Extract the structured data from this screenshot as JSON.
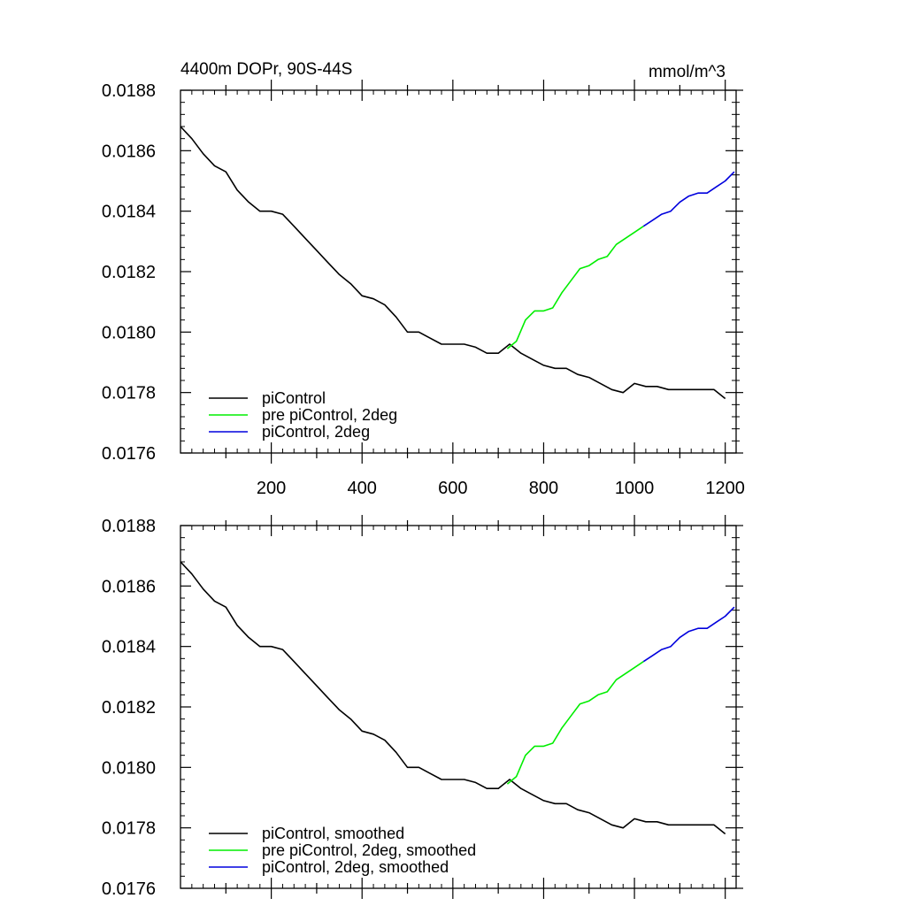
{
  "chart_data": [
    {
      "type": "line",
      "title": "4400m DOPr, 90S-44S",
      "units": "mmol/m^3",
      "xlim": [
        0,
        1224
      ],
      "ylim": [
        0.0176,
        0.0188
      ],
      "x_ticks": [
        200,
        400,
        600,
        800,
        1000,
        1200
      ],
      "x_tick_labels": [
        "200",
        "400",
        "600",
        "800",
        "1000",
        "1200"
      ],
      "y_ticks": [
        0.0176,
        0.0178,
        0.018,
        0.0182,
        0.0184,
        0.0186,
        0.0188
      ],
      "y_tick_labels": [
        "0.0176",
        "0.0178",
        "0.0180",
        "0.0182",
        "0.0184",
        "0.0186",
        "0.0188"
      ],
      "legend_position": "bottom-left",
      "series": [
        {
          "name": "piControl",
          "color": "#000000",
          "x": [
            0,
            25,
            50,
            75,
            100,
            125,
            150,
            175,
            200,
            225,
            250,
            275,
            300,
            325,
            350,
            375,
            400,
            425,
            450,
            475,
            500,
            525,
            550,
            575,
            600,
            625,
            650,
            675,
            700,
            725,
            750,
            775,
            800,
            825,
            850,
            875,
            900,
            925,
            950,
            975,
            1000,
            1025,
            1050,
            1075,
            1100,
            1125,
            1150,
            1175,
            1200
          ],
          "y": [
            0.01868,
            0.01864,
            0.01859,
            0.01855,
            0.01853,
            0.01847,
            0.01843,
            0.0184,
            0.0184,
            0.01839,
            0.01835,
            0.01831,
            0.01827,
            0.01823,
            0.01819,
            0.01816,
            0.01812,
            0.01811,
            0.01809,
            0.01805,
            0.018,
            0.018,
            0.01798,
            0.01796,
            0.01796,
            0.01796,
            0.01795,
            0.01793,
            0.01793,
            0.01796,
            0.01793,
            0.01791,
            0.01789,
            0.01788,
            0.01788,
            0.01786,
            0.01785,
            0.01783,
            0.01781,
            0.0178,
            0.01783,
            0.01782,
            0.01782,
            0.01781,
            0.01781,
            0.01781,
            0.01781,
            0.01781,
            0.01778
          ]
        },
        {
          "name": "pre piControl, 2deg",
          "color": "#00ee00",
          "x": [
            720,
            740,
            760,
            780,
            800,
            820,
            840,
            860,
            880,
            900,
            920,
            940,
            960,
            980,
            1000,
            1020
          ],
          "y": [
            0.017945,
            0.01797,
            0.01804,
            0.01807,
            0.01807,
            0.01808,
            0.01813,
            0.01817,
            0.01821,
            0.01822,
            0.01824,
            0.01825,
            0.01829,
            0.01831,
            0.01833,
            0.01835
          ]
        },
        {
          "name": "piControl, 2deg",
          "color": "#0000dd",
          "x": [
            1020,
            1040,
            1060,
            1080,
            1100,
            1120,
            1140,
            1160,
            1180,
            1200,
            1220
          ],
          "y": [
            0.01835,
            0.01837,
            0.01839,
            0.0184,
            0.01843,
            0.01845,
            0.01846,
            0.01846,
            0.01848,
            0.0185,
            0.01853
          ]
        }
      ]
    },
    {
      "type": "line",
      "xlim": [
        0,
        1224
      ],
      "ylim": [
        0.0176,
        0.0188
      ],
      "y_ticks": [
        0.0176,
        0.0178,
        0.018,
        0.0182,
        0.0184,
        0.0186,
        0.0188
      ],
      "y_tick_labels": [
        "0.0176",
        "0.0178",
        "0.0180",
        "0.0182",
        "0.0184",
        "0.0186",
        "0.0188"
      ],
      "legend_position": "bottom-left",
      "series": [
        {
          "name": "piControl, smoothed",
          "color": "#000000",
          "x": [
            0,
            25,
            50,
            75,
            100,
            125,
            150,
            175,
            200,
            225,
            250,
            275,
            300,
            325,
            350,
            375,
            400,
            425,
            450,
            475,
            500,
            525,
            550,
            575,
            600,
            625,
            650,
            675,
            700,
            725,
            750,
            775,
            800,
            825,
            850,
            875,
            900,
            925,
            950,
            975,
            1000,
            1025,
            1050,
            1075,
            1100,
            1125,
            1150,
            1175,
            1200
          ],
          "y": [
            0.01868,
            0.01864,
            0.01859,
            0.01855,
            0.01853,
            0.01847,
            0.01843,
            0.0184,
            0.0184,
            0.01839,
            0.01835,
            0.01831,
            0.01827,
            0.01823,
            0.01819,
            0.01816,
            0.01812,
            0.01811,
            0.01809,
            0.01805,
            0.018,
            0.018,
            0.01798,
            0.01796,
            0.01796,
            0.01796,
            0.01795,
            0.01793,
            0.01793,
            0.01796,
            0.01793,
            0.01791,
            0.01789,
            0.01788,
            0.01788,
            0.01786,
            0.01785,
            0.01783,
            0.01781,
            0.0178,
            0.01783,
            0.01782,
            0.01782,
            0.01781,
            0.01781,
            0.01781,
            0.01781,
            0.01781,
            0.01778
          ]
        },
        {
          "name": "pre piControl, 2deg, smoothed",
          "color": "#00ee00",
          "x": [
            720,
            740,
            760,
            780,
            800,
            820,
            840,
            860,
            880,
            900,
            920,
            940,
            960,
            980,
            1000,
            1020
          ],
          "y": [
            0.017945,
            0.01797,
            0.01804,
            0.01807,
            0.01807,
            0.01808,
            0.01813,
            0.01817,
            0.01821,
            0.01822,
            0.01824,
            0.01825,
            0.01829,
            0.01831,
            0.01833,
            0.01835
          ]
        },
        {
          "name": "piControl, 2deg, smoothed",
          "color": "#0000dd",
          "x": [
            1020,
            1040,
            1060,
            1080,
            1100,
            1120,
            1140,
            1160,
            1180,
            1200,
            1220
          ],
          "y": [
            0.01835,
            0.01837,
            0.01839,
            0.0184,
            0.01843,
            0.01845,
            0.01846,
            0.01846,
            0.01848,
            0.0185,
            0.01853
          ]
        }
      ]
    }
  ]
}
